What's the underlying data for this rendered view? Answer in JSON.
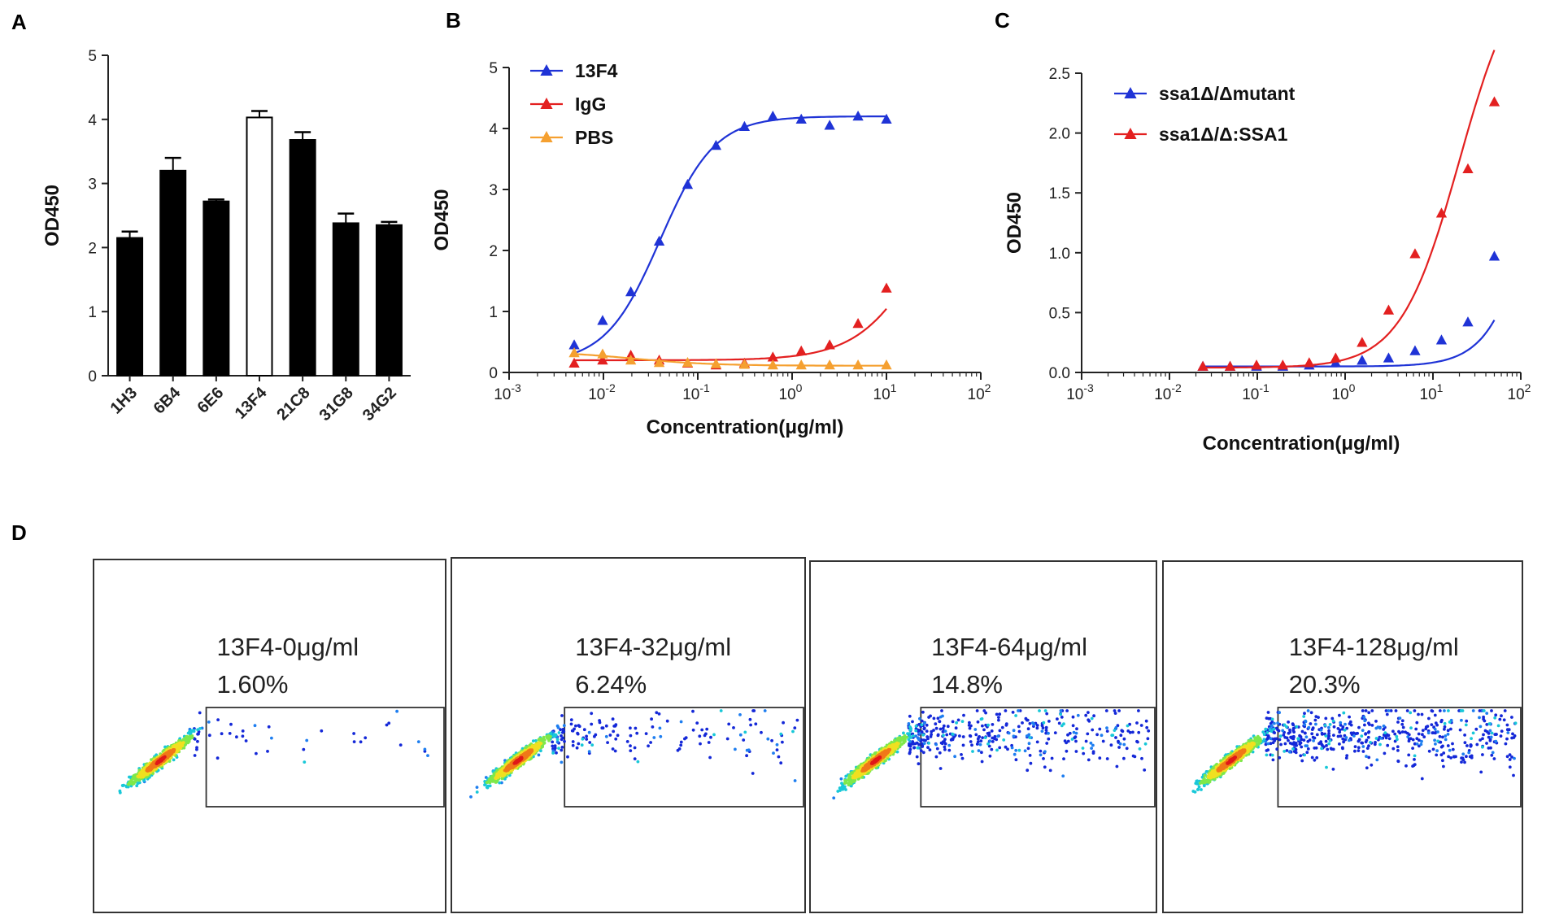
{
  "panels": {
    "a": "A",
    "b": "B",
    "c": "C",
    "d": "D"
  },
  "colors": {
    "blue": "#1f33d6",
    "red": "#e32020",
    "orange": "#f5a030",
    "bar_black": "#000000",
    "bar_white": "#ffffff"
  },
  "chart_data": [
    {
      "id": "A",
      "type": "bar",
      "title": "",
      "xlabel": "",
      "ylabel": "OD450",
      "ylim": [
        0,
        5
      ],
      "yticks": [
        "0",
        "1",
        "2",
        "3",
        "4",
        "5"
      ],
      "categories": [
        "1H3",
        "6B4",
        "6E6",
        "13F4",
        "21C8",
        "31G8",
        "34G2"
      ],
      "values": [
        2.15,
        3.2,
        2.72,
        4.03,
        3.68,
        2.38,
        2.35
      ],
      "errors": [
        0.1,
        0.2,
        0.03,
        0.1,
        0.12,
        0.15,
        0.05
      ],
      "highlight": "13F4"
    },
    {
      "id": "B",
      "type": "scatter",
      "title": "",
      "xlabel": "Concentration(μg/ml)",
      "ylabel": "OD450",
      "xscale": "log",
      "xlim": [
        -3,
        2
      ],
      "ylim": [
        0,
        5
      ],
      "yticks": [
        "0",
        "1",
        "2",
        "3",
        "4",
        "5"
      ],
      "xticks": [
        {
          "base": "10",
          "exp": "-3"
        },
        {
          "base": "10",
          "exp": "-2"
        },
        {
          "base": "10",
          "exp": "-1"
        },
        {
          "base": "10",
          "exp": "0"
        },
        {
          "base": "10",
          "exp": "1"
        },
        {
          "base": "10",
          "exp": "2"
        }
      ],
      "legend_position": "top-left",
      "series": [
        {
          "name": "13F4",
          "color": "#1f33d6",
          "x": [
            0.0049,
            0.0098,
            0.0195,
            0.039,
            0.078,
            0.156,
            0.3125,
            0.625,
            1.25,
            2.5,
            5,
            10
          ],
          "y": [
            0.45,
            0.85,
            1.32,
            2.15,
            3.08,
            3.72,
            4.03,
            4.2,
            4.15,
            4.05,
            4.2,
            4.15
          ],
          "fit": [
            0.15,
            4.2,
            0.04,
            1.5
          ]
        },
        {
          "name": "IgG",
          "color": "#e32020",
          "x": [
            0.0049,
            0.0098,
            0.0195,
            0.039,
            0.078,
            0.156,
            0.3125,
            0.625,
            1.25,
            2.5,
            5,
            10
          ],
          "y": [
            0.15,
            0.2,
            0.28,
            0.2,
            0.15,
            0.12,
            0.15,
            0.25,
            0.35,
            0.45,
            0.8,
            1.38
          ],
          "fit": [
            0.2,
            4.2,
            30,
            1.2
          ]
        },
        {
          "name": "PBS",
          "color": "#f5a030",
          "x": [
            0.0049,
            0.0098,
            0.0195,
            0.039,
            0.078,
            0.156,
            0.3125,
            0.625,
            1.25,
            2.5,
            5,
            10
          ],
          "y": [
            0.32,
            0.3,
            0.2,
            0.16,
            0.16,
            0.14,
            0.13,
            0.12,
            0.12,
            0.12,
            0.12,
            0.12
          ],
          "fit": [
            0.11,
            0.35,
            0.02,
            -1
          ]
        }
      ]
    },
    {
      "id": "C",
      "type": "scatter",
      "title": "",
      "xlabel": "Concentration(μg/ml)",
      "ylabel": "OD450",
      "xscale": "log",
      "xlim": [
        -3,
        2
      ],
      "ylim": [
        0,
        2.5
      ],
      "yticks": [
        "0.0",
        "0.5",
        "1.0",
        "1.5",
        "2.0",
        "2.5"
      ],
      "xticks": [
        {
          "base": "10",
          "exp": "-3"
        },
        {
          "base": "10",
          "exp": "-2"
        },
        {
          "base": "10",
          "exp": "-1"
        },
        {
          "base": "10",
          "exp": "0"
        },
        {
          "base": "10",
          "exp": "1"
        },
        {
          "base": "10",
          "exp": "2"
        }
      ],
      "legend_position": "top-left",
      "series": [
        {
          "name": "ssa1Δ/Δmutant",
          "color": "#1f33d6",
          "x": [
            0.024,
            0.049,
            0.098,
            0.195,
            0.39,
            0.78,
            1.56,
            3.125,
            6.25,
            12.5,
            25,
            50
          ],
          "y": [
            0.05,
            0.05,
            0.05,
            0.05,
            0.06,
            0.08,
            0.1,
            0.12,
            0.18,
            0.27,
            0.42,
            0.97
          ],
          "fit": [
            0.05,
            4,
            200,
            1.6
          ]
        },
        {
          "name": "ssa1Δ/Δ:SSA1",
          "color": "#e32020",
          "x": [
            0.024,
            0.049,
            0.098,
            0.195,
            0.39,
            0.78,
            1.56,
            3.125,
            6.25,
            12.5,
            25,
            50
          ],
          "y": [
            0.05,
            0.05,
            0.06,
            0.06,
            0.08,
            0.12,
            0.25,
            0.52,
            0.99,
            1.33,
            1.7,
            2.26
          ],
          "fit": [
            0.04,
            3.5,
            20,
            1.3
          ]
        }
      ]
    }
  ],
  "flow": [
    {
      "label": "13F4-0μg/ml",
      "percent": "1.60%",
      "fraction": 0.016
    },
    {
      "label": "13F4-32μg/ml",
      "percent": "6.24%",
      "fraction": 0.0624
    },
    {
      "label": "13F4-64μg/ml",
      "percent": "14.8%",
      "fraction": 0.148
    },
    {
      "label": "13F4-128μg/ml",
      "percent": "20.3%",
      "fraction": 0.203
    }
  ]
}
